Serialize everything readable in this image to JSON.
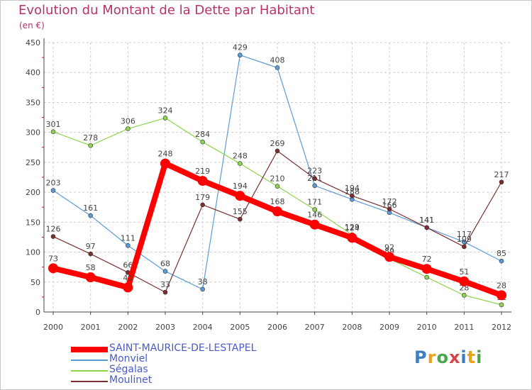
{
  "title": "Evolution du Montant de la Dette par Habitant",
  "subtitle": "(en €)",
  "logo_text": "Proxiti",
  "chart_data": {
    "type": "line",
    "title": "Evolution du Montant de la Dette par Habitant",
    "ylabel": "(en €)",
    "xlabel": "",
    "ylim": [
      0,
      450
    ],
    "yticks": [
      0,
      50,
      100,
      150,
      200,
      250,
      300,
      350,
      400,
      450
    ],
    "grid": true,
    "legend_position": "bottom-left",
    "categories": [
      "2000",
      "2001",
      "2002",
      "2003",
      "2004",
      "2005",
      "2006",
      "2007",
      "2008",
      "2009",
      "2010",
      "2011",
      "2012"
    ],
    "series": [
      {
        "name": "SAINT-MAURICE-DE-LESTAPEL",
        "color": "#ff0000",
        "emphasis": true,
        "values": [
          73,
          58,
          41,
          248,
          219,
          194,
          168,
          146,
          124,
          92,
          72,
          51,
          28
        ]
      },
      {
        "name": "Monviel",
        "color": "#5b9bd5",
        "values": [
          203,
          161,
          111,
          68,
          38,
          429,
          408,
          211,
          188,
          166,
          141,
          117,
          85
        ]
      },
      {
        "name": "Ségalas",
        "color": "#8fd44c",
        "values": [
          301,
          278,
          306,
          324,
          284,
          248,
          210,
          171,
          129,
          89,
          58,
          28,
          12
        ]
      },
      {
        "name": "Moulinet",
        "color": "#7a2e2e",
        "values": [
          126,
          97,
          66,
          33,
          179,
          155,
          269,
          223,
          194,
          172,
          141,
          109,
          217
        ]
      }
    ]
  }
}
